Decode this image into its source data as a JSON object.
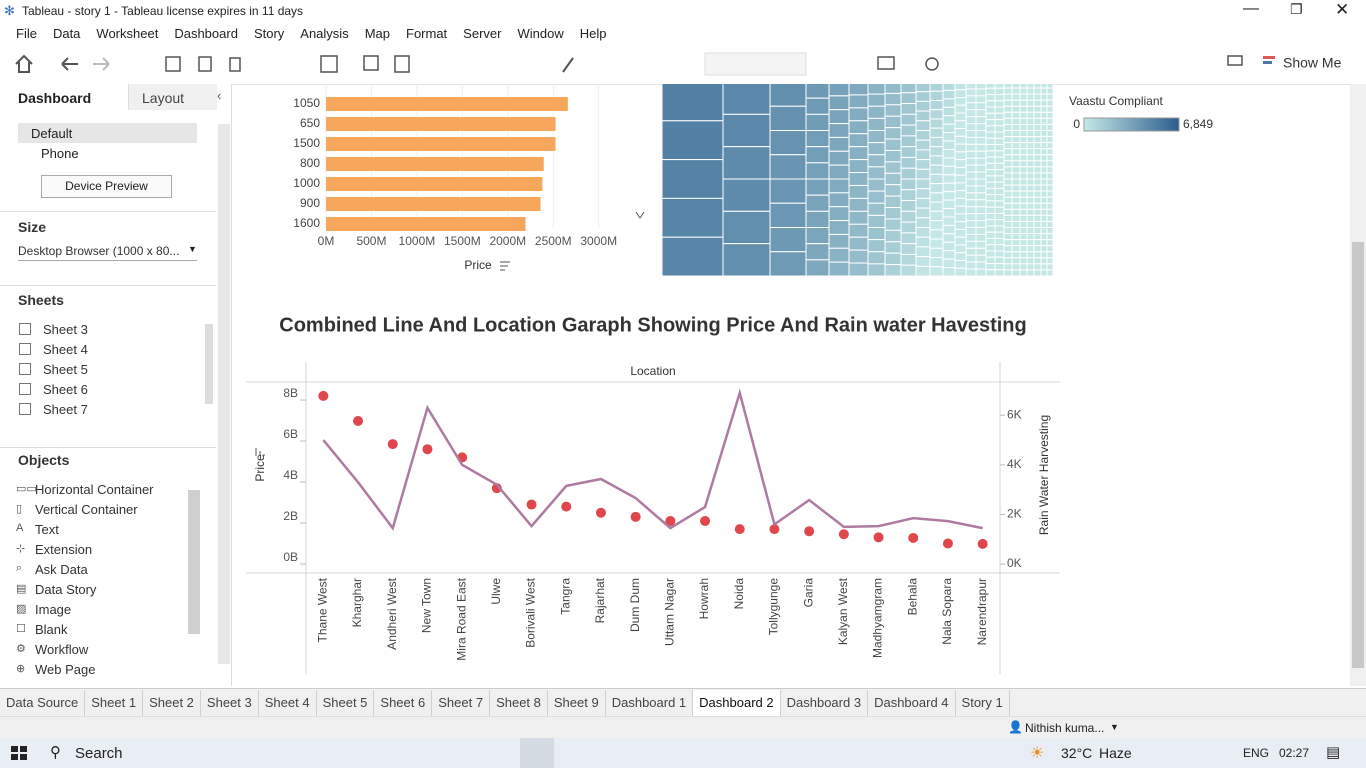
{
  "window": {
    "title": "Tableau - story 1 - Tableau license expires in 11 days"
  },
  "menu": [
    "File",
    "Data",
    "Worksheet",
    "Dashboard",
    "Story",
    "Analysis",
    "Map",
    "Format",
    "Server",
    "Window",
    "Help"
  ],
  "toolbar": {
    "show_me": "Show Me"
  },
  "sidebar": {
    "tabs": [
      "Dashboard",
      "Layout"
    ],
    "devices": [
      "Default",
      "Phone"
    ],
    "device_preview": "Device Preview",
    "size_heading": "Size",
    "size_value": "Desktop Browser (1000 x 80...",
    "sheets_heading": "Sheets",
    "sheets": [
      "Sheet 3",
      "Sheet 4",
      "Sheet 5",
      "Sheet 6",
      "Sheet 7"
    ],
    "objects_heading": "Objects",
    "objects": [
      "Horizontal Container",
      "Vertical Container",
      "Text",
      "Extension",
      "Ask Data",
      "Data Story",
      "Image",
      "Blank",
      "Workflow",
      "Web Page"
    ]
  },
  "chart_data": [
    {
      "type": "bar",
      "categories": [
        "1050",
        "650",
        "1500",
        "800",
        "1000",
        "900",
        "1600"
      ],
      "values": [
        2660000000,
        2525000000,
        2525000000,
        2395000000,
        2380000000,
        2360000000,
        2195000000
      ],
      "color": "#f7a75c",
      "xlabel": "Price",
      "xlim": [
        0,
        3300000000
      ],
      "xticks": [
        {
          "value": 0,
          "label": "0M"
        },
        {
          "value": 500000000,
          "label": "500M"
        },
        {
          "value": 1000000000,
          "label": "1000M"
        },
        {
          "value": 1500000000,
          "label": "1500M"
        },
        {
          "value": 2000000000,
          "label": "2000M"
        },
        {
          "value": 2500000000,
          "label": "2500M"
        },
        {
          "value": 3000000000,
          "label": "3000M"
        }
      ]
    },
    {
      "type": "treemap",
      "legend_title": "Vaastu Compliant",
      "colors": [
        "#c5e8e6",
        "#2b5d8f"
      ],
      "colorbar_ticks": [
        0,
        {
          "value": 6849,
          "label": "6,849"
        }
      ]
    },
    {
      "type": "combo",
      "title": "Combined Line And Location Garaph Showing Price And Rain water Havesting",
      "header": "Location",
      "categories": [
        "Thane West",
        "Kharghar",
        "Andheri West",
        "New Town",
        "Mira Road East",
        "Ulwe",
        "Borivali West",
        "Tangra",
        "Rajarhat",
        "Dum Dum",
        "Uttam Nagar",
        "Howrah",
        "Noida",
        "Tollygunge",
        "Garia",
        "Kalyan West",
        "Madhyamgram",
        "Behala",
        "Nala Sopara",
        "Narendrapur"
      ],
      "series": [
        {
          "name": "Price",
          "mark": "circle",
          "color": "#e0474c",
          "values": [
            8200000000,
            6980000000,
            5850000000,
            5600000000,
            5200000000,
            3700000000,
            2900000000,
            2800000000,
            2500000000,
            2300000000,
            2100000000,
            2100000000,
            1700000000,
            1700000000,
            1600000000,
            1450000000,
            1300000000,
            1270000000,
            1000000000,
            980000000
          ]
        },
        {
          "name": "Rain Water Harvesting",
          "mark": "line",
          "axis": "y2",
          "color": "#ad7aa0",
          "values": [
            5000,
            3300,
            1450,
            6300,
            4000,
            3200,
            1530,
            3150,
            3430,
            2660,
            1450,
            2300,
            6900,
            1600,
            2580,
            1500,
            1530,
            1850,
            1730,
            1450
          ]
        }
      ],
      "ylim": [
        -440000000,
        8880000000
      ],
      "yticks": [
        {
          "value": 0,
          "label": "0B"
        },
        {
          "value": 2000000000,
          "label": "2B"
        },
        {
          "value": 4000000000,
          "label": "4B"
        },
        {
          "value": 6000000000,
          "label": "6B"
        },
        {
          "value": 8000000000,
          "label": "8B"
        }
      ],
      "y2lim": [
        -360,
        7340
      ],
      "y2ticks": [
        {
          "value": 0,
          "label": "0K"
        },
        {
          "value": 2000,
          "label": "2K"
        },
        {
          "value": 4000,
          "label": "4K"
        },
        {
          "value": 6000,
          "label": "6K"
        }
      ]
    }
  ],
  "tabs": [
    "Data Source",
    "Sheet 1",
    "Sheet 2",
    "Sheet 3",
    "Sheet 4",
    "Sheet 5",
    "Sheet 6",
    "Sheet 7",
    "Sheet 8",
    "Sheet 9",
    "Dashboard 1",
    "Dashboard 2",
    "Dashboard 3",
    "Dashboard 4",
    "Story 1"
  ],
  "active_tab": 11,
  "status": {
    "user": "Nithish kuma..."
  },
  "taskbar": {
    "search": "Search",
    "temperature": "32°C",
    "weather": "Haze",
    "language": "ENG",
    "time": "02:27"
  }
}
